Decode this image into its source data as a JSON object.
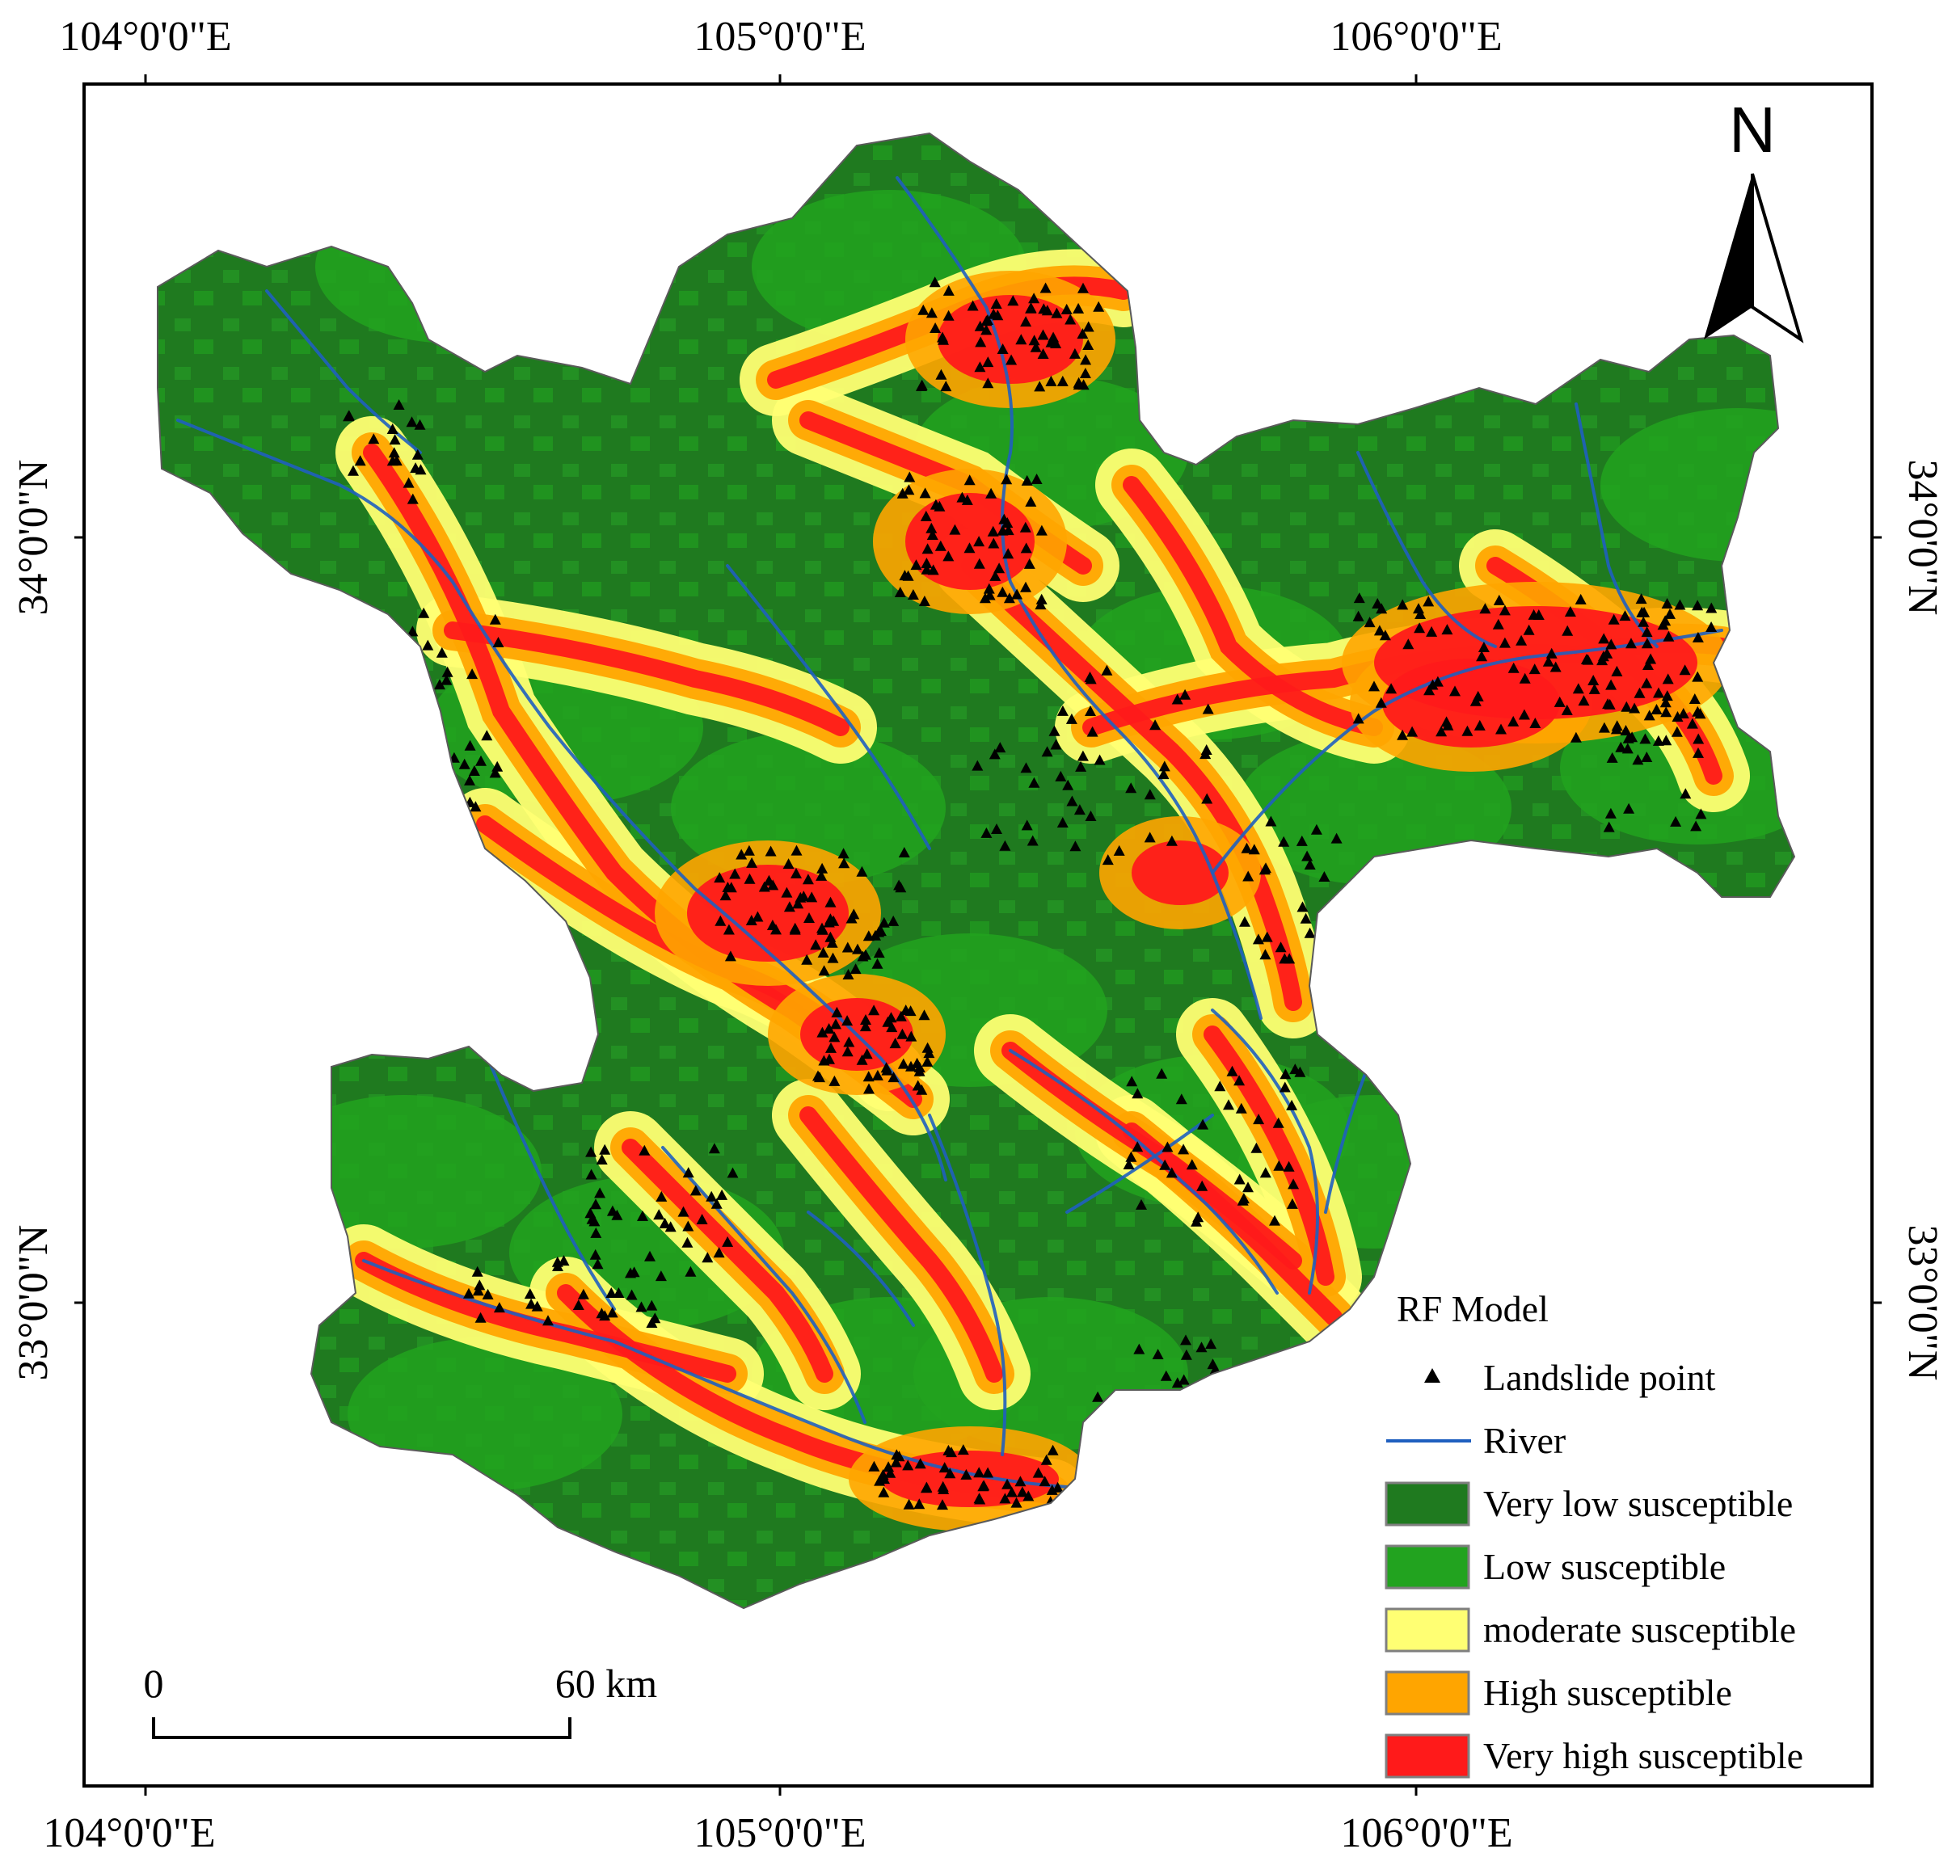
{
  "coordinates": {
    "top": [
      "104°0'0\"E",
      "105°0'0\"E",
      "106°0'0\"E"
    ],
    "bottom": [
      "104°0'0\"E",
      "105°0'0\"E",
      "106°0'0\"E"
    ],
    "left": [
      "34°0'0\"N",
      "33°0'0\"N"
    ],
    "right": [
      "34°0'0\"N",
      "33°0'0\"N"
    ]
  },
  "north_arrow": {
    "label": "N"
  },
  "scale_bar": {
    "start_label": "0",
    "end_label": "60 km"
  },
  "legend": {
    "title": "RF Model",
    "items": [
      {
        "label": "Landslide point",
        "symbol": "triangle",
        "color": "#000000"
      },
      {
        "label": "River",
        "symbol": "line",
        "color": "#1f5fbf"
      },
      {
        "label": "Very low susceptible",
        "symbol": "box",
        "color": "#1f7a1f"
      },
      {
        "label": "Low susceptible",
        "symbol": "box",
        "color": "#22a31f"
      },
      {
        "label": "moderate susceptible",
        "symbol": "box",
        "color": "#ffff73"
      },
      {
        "label": "High susceptible",
        "symbol": "box",
        "color": "#ffa500"
      },
      {
        "label": "Very high susceptible",
        "symbol": "box",
        "color": "#ff1a1a"
      }
    ]
  },
  "colors": {
    "very_low": "#1f7a1f",
    "low": "#22a31f",
    "moderate": "#ffff73",
    "high": "#ffa500",
    "very_high": "#ff1a1a",
    "river": "#1f5fbf",
    "landslide": "#000000"
  }
}
